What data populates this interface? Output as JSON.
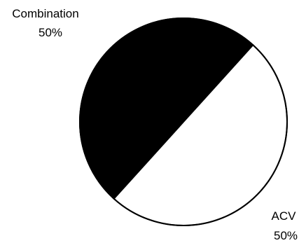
{
  "chart_data": {
    "type": "pie",
    "slices": [
      {
        "label": "Combination",
        "percent_label": "50%",
        "value": 50,
        "color": "#000000"
      },
      {
        "label": "ACV",
        "percent_label": "50%",
        "value": 50,
        "color": "#ffffff"
      }
    ],
    "title": "",
    "legend": "none",
    "slice_outline_color": "#000000"
  }
}
